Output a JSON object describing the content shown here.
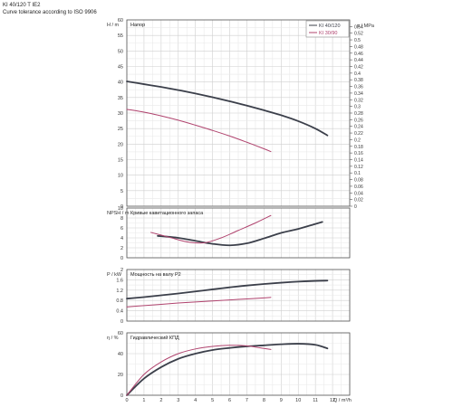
{
  "header": {
    "model": "KI 40/120 T IE2",
    "tolerance": "Curve tolerance according to ISO 9906"
  },
  "chart_data": [
    {
      "type": "line",
      "title": "Напор",
      "ylabel": "H / m",
      "y2label": "p / MPa",
      "xlim": [
        0,
        13
      ],
      "ylim": [
        0,
        60
      ],
      "y2lim": [
        0,
        0.56
      ],
      "yticks": [
        0,
        5,
        10,
        15,
        20,
        25,
        30,
        35,
        40,
        45,
        50,
        55,
        60
      ],
      "y2ticks": [
        0,
        0.02,
        0.04,
        0.06,
        0.08,
        0.1,
        0.12,
        0.14,
        0.16,
        0.18,
        0.2,
        0.22,
        0.24,
        0.26,
        0.28,
        0.3,
        0.32,
        0.34,
        0.36,
        0.38,
        0.4,
        0.42,
        0.44,
        0.46,
        0.48,
        0.5,
        0.52,
        0.54
      ],
      "legend": {
        "placement": "top-right",
        "entries": [
          "KI 40/120",
          "KI 30/90"
        ]
      },
      "series": [
        {
          "name": "KI 40/120",
          "color": "#3b3f4a",
          "x": [
            0,
            1,
            2,
            3,
            4,
            5,
            6,
            7,
            8,
            9,
            10,
            11,
            11.7
          ],
          "y": [
            40.2,
            39.3,
            38.4,
            37.4,
            36.3,
            35.1,
            33.8,
            32.4,
            30.9,
            29.3,
            27.4,
            25.0,
            22.8
          ]
        },
        {
          "name": "KI 30/90",
          "color": "#b0436e",
          "x": [
            0,
            1,
            2,
            3,
            4,
            5,
            6,
            7,
            8,
            8.4
          ],
          "y": [
            31.2,
            30.3,
            29.1,
            27.7,
            26.1,
            24.4,
            22.6,
            20.6,
            18.5,
            17.6
          ]
        }
      ]
    },
    {
      "type": "line",
      "title": "Кривые кавитационного запаса",
      "ylabel": "NPSH / m",
      "xlim": [
        0,
        13
      ],
      "ylim": [
        0,
        10
      ],
      "yticks": [
        0,
        2,
        4,
        6,
        8,
        10
      ],
      "series": [
        {
          "name": "KI 40/120",
          "color": "#3b3f4a",
          "x": [
            1.8,
            3,
            4,
            5,
            6,
            7,
            8,
            9,
            10,
            11,
            11.4
          ],
          "y": [
            4.4,
            4.0,
            3.4,
            2.8,
            2.5,
            2.9,
            3.9,
            5.0,
            5.8,
            6.8,
            7.2
          ]
        },
        {
          "name": "KI 30/90",
          "color": "#b0436e",
          "x": [
            1.4,
            2.5,
            3.5,
            4.5,
            5.5,
            6.5,
            7.5,
            8.4
          ],
          "y": [
            5.1,
            4.1,
            3.2,
            3.0,
            4.0,
            5.5,
            7.0,
            8.5
          ]
        }
      ]
    },
    {
      "type": "line",
      "title": "Мощность на валу P2",
      "ylabel": "P / kW",
      "xlim": [
        0,
        13
      ],
      "ylim": [
        0,
        2
      ],
      "yticks": [
        0,
        0.4,
        0.8,
        1.2,
        1.6,
        2
      ],
      "series": [
        {
          "name": "KI 40/120",
          "color": "#3b3f4a",
          "x": [
            0,
            1,
            2,
            3,
            4,
            5,
            6,
            7,
            8,
            9,
            10,
            11,
            11.7
          ],
          "y": [
            0.87,
            0.93,
            1.0,
            1.07,
            1.15,
            1.23,
            1.31,
            1.38,
            1.44,
            1.49,
            1.53,
            1.56,
            1.57
          ]
        },
        {
          "name": "KI 30/90",
          "color": "#b0436e",
          "x": [
            0,
            1,
            2,
            3,
            4,
            5,
            6,
            7,
            8,
            8.4
          ],
          "y": [
            0.55,
            0.6,
            0.65,
            0.7,
            0.74,
            0.78,
            0.82,
            0.86,
            0.9,
            0.92
          ]
        }
      ]
    },
    {
      "type": "line",
      "title": "Гидравлический КПД",
      "ylabel": "η / %",
      "xlabel": "Q / m³/h",
      "xlim": [
        0,
        13
      ],
      "ylim": [
        0,
        60
      ],
      "yticks": [
        0,
        20,
        40,
        60
      ],
      "xticks": [
        0,
        1,
        2,
        3,
        4,
        5,
        6,
        7,
        8,
        9,
        10,
        11,
        12
      ],
      "series": [
        {
          "name": "KI 40/120",
          "color": "#3b3f4a",
          "x": [
            0,
            1,
            2,
            3,
            4,
            5,
            6,
            7,
            8,
            9,
            10,
            11,
            11.7
          ],
          "y": [
            0,
            16,
            27,
            35,
            40,
            43.5,
            45.5,
            47,
            48,
            49,
            49.5,
            48.5,
            45
          ]
        },
        {
          "name": "KI 30/90",
          "color": "#b0436e",
          "x": [
            0,
            1,
            2,
            3,
            4,
            5,
            6,
            7,
            8,
            8.4
          ],
          "y": [
            0,
            20,
            32,
            40,
            44.5,
            47,
            48,
            47.5,
            45,
            44
          ]
        }
      ]
    }
  ]
}
